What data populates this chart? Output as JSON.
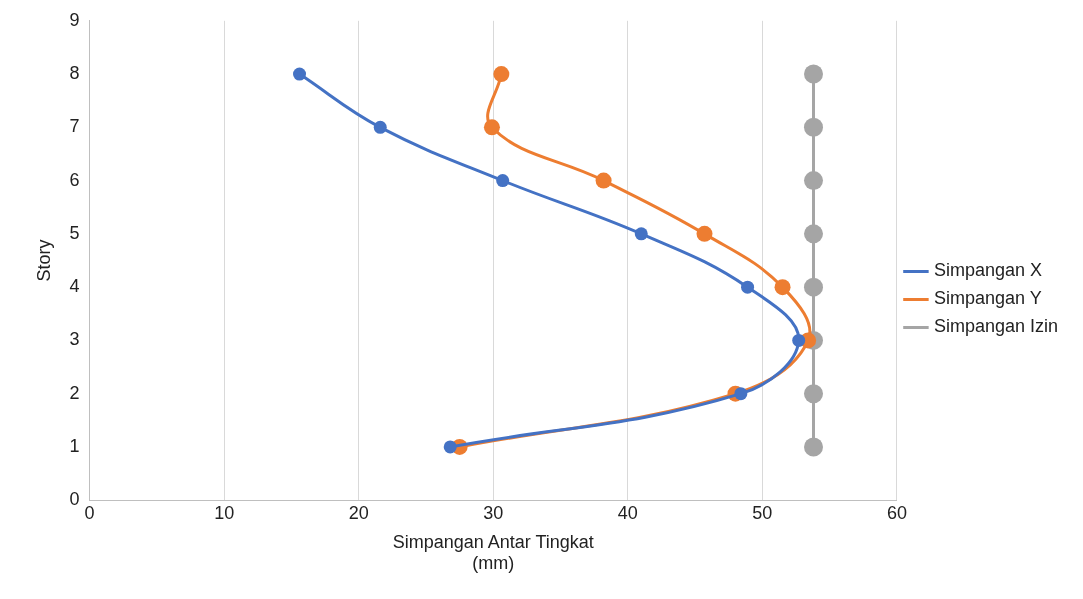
{
  "chart_data": {
    "type": "line",
    "xlabel": [
      "Simpangan Antar Tingkat",
      "(mm)"
    ],
    "ylabel": "Story",
    "xlim": [
      0,
      60
    ],
    "xticks": [
      0,
      10,
      20,
      30,
      40,
      50,
      60
    ],
    "ylim": [
      0,
      9
    ],
    "yticks": [
      0,
      1,
      2,
      3,
      4,
      5,
      6,
      7,
      8,
      9
    ],
    "grid": "x",
    "legend": "right",
    "marker": "circle",
    "line_style": "solid",
    "series": [
      {
        "name": "Simpangan X",
        "color": "#4472c4",
        "x": [
          26.8,
          48.4,
          52.7,
          48.9,
          41.0,
          30.7,
          21.6,
          15.6
        ],
        "values": [
          1,
          2,
          3,
          4,
          5,
          6,
          7,
          8
        ]
      },
      {
        "name": "Simpangan Y",
        "color": "#ed7d31",
        "x": [
          27.5,
          48.0,
          53.4,
          51.5,
          45.7,
          38.2,
          29.9,
          30.6
        ],
        "values": [
          1,
          2,
          3,
          4,
          5,
          6,
          7,
          8
        ]
      },
      {
        "name": "Simpangan Izin",
        "color": "#a5a5a5",
        "x": [
          53.8,
          53.8,
          53.8,
          53.8,
          53.8,
          53.8,
          53.8,
          53.8
        ],
        "values": [
          1,
          2,
          3,
          4,
          5,
          6,
          7,
          8
        ]
      }
    ]
  }
}
